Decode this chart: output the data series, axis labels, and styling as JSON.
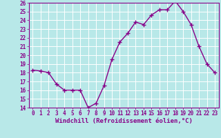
{
  "x": [
    0,
    1,
    2,
    3,
    4,
    5,
    6,
    7,
    8,
    9,
    10,
    11,
    12,
    13,
    14,
    15,
    16,
    17,
    18,
    19,
    20,
    21,
    22,
    23
  ],
  "y": [
    18.3,
    18.2,
    18.0,
    16.7,
    16.0,
    16.0,
    16.0,
    14.0,
    14.5,
    16.5,
    19.5,
    21.5,
    22.5,
    23.8,
    23.5,
    24.6,
    25.2,
    25.2,
    26.2,
    25.0,
    23.5,
    21.0,
    19.0,
    18.0
  ],
  "line_color": "#880088",
  "marker": "+",
  "marker_size": 4,
  "marker_lw": 1.0,
  "bg_color": "#b8e8e8",
  "grid_color": "#ffffff",
  "spine_color": "#880088",
  "tick_color": "#880088",
  "label_color": "#880088",
  "xlabel": "Windchill (Refroidissement éolien,°C)",
  "ylim": [
    14,
    26
  ],
  "yticks": [
    14,
    15,
    16,
    17,
    18,
    19,
    20,
    21,
    22,
    23,
    24,
    25,
    26
  ],
  "xticks": [
    0,
    1,
    2,
    3,
    4,
    5,
    6,
    7,
    8,
    9,
    10,
    11,
    12,
    13,
    14,
    15,
    16,
    17,
    18,
    19,
    20,
    21,
    22,
    23
  ],
  "xlim": [
    -0.5,
    23.5
  ],
  "tick_label_fontsize": 5.5,
  "xlabel_fontsize": 6.5,
  "linewidth": 1.0
}
